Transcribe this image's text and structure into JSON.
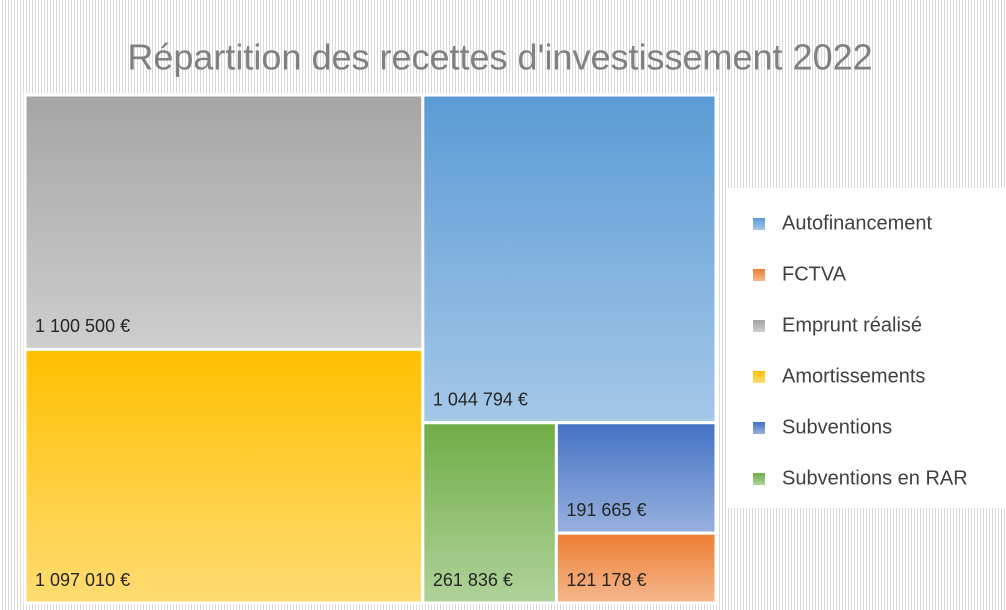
{
  "chart_data": {
    "type": "treemap",
    "title": "Répartition des recettes d'investissement 2022",
    "categories": [
      "Autofinancement",
      "FCTVA",
      "Emprunt réalisé",
      "Amortissements",
      "Subventions",
      "Subventions en RAR"
    ],
    "values": [
      1044794,
      121178,
      1100500,
      1097010,
      191665,
      261836
    ],
    "value_labels": [
      "1 044 794 €",
      "121 178 €",
      "1 100 500 €",
      "1 097 010 €",
      "191 665 €",
      "261 836 €"
    ],
    "colors": [
      "#5b9bd5",
      "#ed7d31",
      "#a5a5a5",
      "#ffc000",
      "#4472c4",
      "#70ad47"
    ],
    "legend": "right"
  }
}
